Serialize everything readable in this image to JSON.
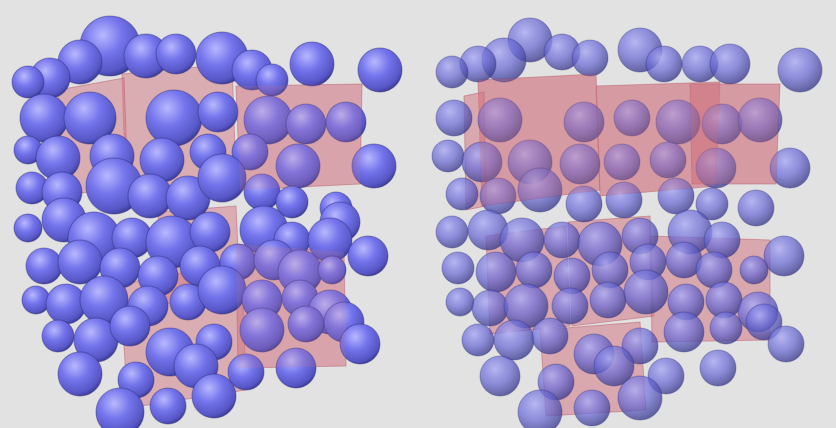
{
  "scene": {
    "background_color": "#e2e2e2",
    "sphere_color": "#6e6ee6",
    "sphere_highlight_color": "#b4b4ff",
    "sphere_shadow_color": "#2c2c7a",
    "box_color": "#d27884",
    "panels": [
      {
        "name": "left-panel",
        "style": "opaque-spheres"
      },
      {
        "name": "right-panel",
        "style": "translucent-spheres"
      }
    ]
  }
}
